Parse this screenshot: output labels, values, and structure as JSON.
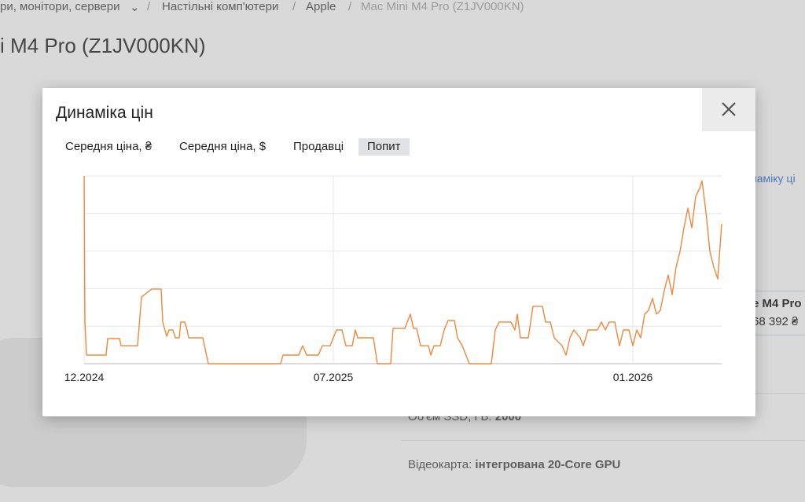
{
  "breadcrumbs": [
    "ри, монітори, сервери",
    "Настільні комп'ютери",
    "Apple",
    "Mac Mini M4 Pro (Z1JV000KN)"
  ],
  "page_title": "i M4 Pro (Z1JV000KN)",
  "background": {
    "link": "намiку ці",
    "offer_name": "e M4 Pro",
    "offer_price": "68 392 ₴",
    "specs": [
      {
        "label": "Об'єм SSD, ГБ:",
        "value": "2000"
      },
      {
        "label": "Відеокарта:",
        "value": "інтегрована 20-Core GPU"
      }
    ]
  },
  "modal": {
    "title": "Динаміка цін",
    "tabs": [
      "Середня ціна, ₴",
      "Середня ціна, $",
      "Продавці",
      "Попит"
    ],
    "active_tab": 3
  },
  "chart_data": {
    "type": "line",
    "color": "#f0883a",
    "x": [
      0,
      1,
      3,
      28,
      30,
      45,
      47,
      68,
      73,
      86,
      98,
      100,
      105,
      108,
      113,
      116,
      121,
      123,
      128,
      131,
      133,
      151,
      158,
      250,
      253,
      273,
      278,
      283,
      298,
      303,
      313,
      321,
      328,
      333,
      341,
      345,
      348,
      368,
      373,
      390,
      393,
      408,
      415,
      419,
      423,
      428,
      438,
      441,
      445,
      453,
      458,
      463,
      471,
      475,
      481,
      490,
      518,
      523,
      528,
      543,
      548,
      551,
      555,
      565,
      571,
      583,
      587,
      593,
      598,
      608,
      613,
      618,
      623,
      631,
      635,
      641,
      653,
      658,
      663,
      668,
      675,
      681,
      686,
      693,
      698,
      703,
      708,
      713,
      718,
      723,
      728,
      733,
      738,
      743,
      748,
      753,
      758,
      763,
      768,
      773,
      778,
      783,
      786,
      791,
      796,
      801,
      806,
      811
    ],
    "values": [
      5.0,
      1.11,
      0.23,
      0.23,
      0.67,
      0.67,
      0.48,
      0.48,
      1.78,
      1.99,
      1.99,
      1.11,
      0.73,
      0.9,
      0.9,
      0.69,
      0.69,
      1.11,
      1.11,
      0.9,
      0.69,
      0.69,
      0,
      0,
      0.23,
      0.23,
      0.48,
      0.23,
      0.23,
      0.48,
      0.48,
      0.9,
      0.9,
      0.48,
      0.48,
      0.9,
      0.69,
      0.69,
      0,
      0,
      0.94,
      0.94,
      1.32,
      0.94,
      0.94,
      0.48,
      0.48,
      0.23,
      0.48,
      0.48,
      0.9,
      1.15,
      1.15,
      0.69,
      0.48,
      0,
      0,
      0.9,
      1.11,
      1.11,
      0.9,
      1.32,
      0.69,
      0.69,
      1.53,
      1.53,
      1.11,
      1.11,
      0.69,
      0.48,
      0.23,
      0.69,
      0.9,
      0.69,
      0.48,
      0.9,
      0.9,
      1.11,
      0.9,
      1.11,
      1.11,
      0.48,
      0.9,
      0.9,
      0.48,
      0.9,
      0.69,
      1.32,
      1.42,
      1.74,
      1.32,
      1.42,
      1.95,
      2.36,
      1.84,
      2.57,
      2.99,
      3.62,
      4.14,
      3.62,
      4.46,
      4.67,
      4.87,
      4.04,
      2.99,
      2.57,
      2.26,
      3.72
    ],
    "xlim": [
      0,
      811
    ],
    "xticks": [
      {
        "value": 0,
        "label": "12.2024"
      },
      {
        "value": 317,
        "label": "07.2025"
      },
      {
        "value": 698,
        "label": "01.2026"
      }
    ],
    "ylim": [
      0,
      5
    ],
    "y_grid": [
      0,
      1,
      2,
      3,
      4,
      5
    ],
    "grid": true
  }
}
